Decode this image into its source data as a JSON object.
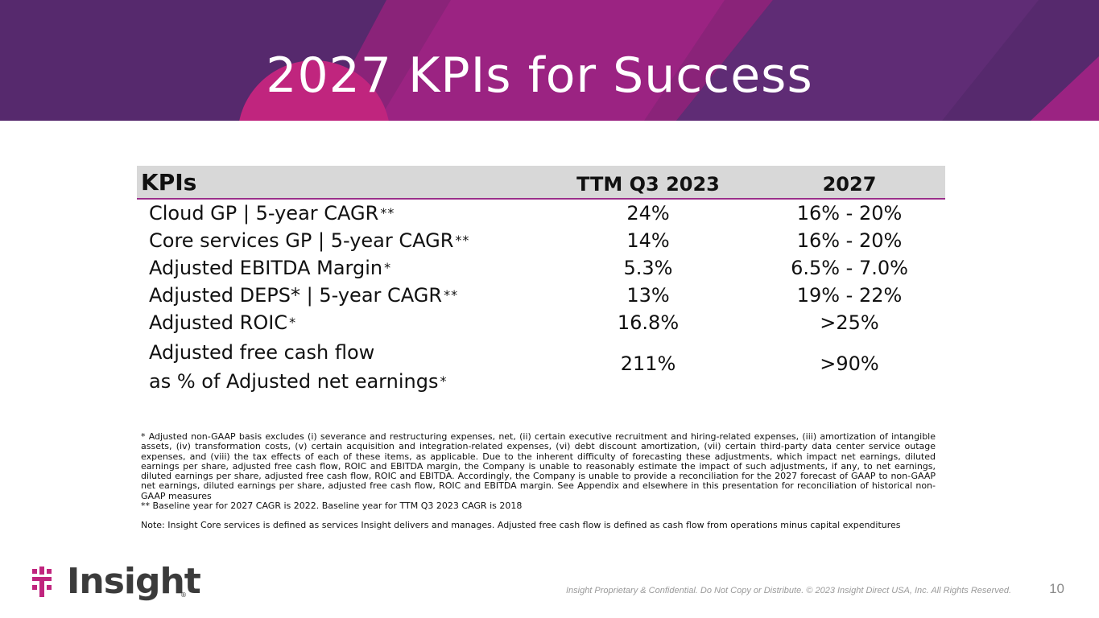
{
  "slide": {
    "title": "2027 KPIs for Success",
    "page_number": "10",
    "confidential": "Insight Proprietary & Confidential. Do Not Copy or Distribute. © 2023 Insight Direct USA, Inc. All Rights Reserved."
  },
  "logo": {
    "word": "Insight",
    "registered": "®"
  },
  "colors": {
    "banner_dark": "#56296d",
    "banner_magenta": "#9b2382",
    "banner_pink": "#c0257e",
    "accent": "#9a2f8a"
  },
  "table": {
    "headers": {
      "kpi": "KPIs",
      "ttm": "TTM Q3 2023",
      "year": "2027"
    },
    "rows": [
      {
        "name": "Cloud GP | 5-year CAGR",
        "mark": "**",
        "ttm": "24%",
        "target": "16% - 20%"
      },
      {
        "name": "Core services GP | 5-year CAGR",
        "mark": "**",
        "ttm": "14%",
        "target": "16% - 20%"
      },
      {
        "name": "Adjusted EBITDA Margin",
        "mark": "*",
        "ttm": "5.3%",
        "target": "6.5% - 7.0%"
      },
      {
        "name": "Adjusted DEPS* | 5-year CAGR",
        "mark": "**",
        "ttm": "13%",
        "target": "19% - 22%"
      },
      {
        "name": "Adjusted ROIC",
        "mark": "*",
        "ttm": "16.8%",
        "target": ">25%"
      }
    ],
    "last_row": {
      "line1": "Adjusted free cash flow",
      "line2": "as % of Adjusted net earnings",
      "mark": "*",
      "ttm": "211%",
      "target": ">90%"
    }
  },
  "footnotes": {
    "note1": "* Adjusted non-GAAP basis excludes (i) severance and restructuring expenses, net, (ii) certain executive recruitment and hiring-related expenses, (iii) amortization of intangible assets, (iv) transformation costs, (v) certain acquisition and integration-related expenses, (vi) debt discount amortization, (vii) certain third-party data center service outage expenses, and (viii) the tax effects of each of these items, as applicable. Due to the inherent difficulty of forecasting these adjustments, which impact net earnings, diluted earnings per share, adjusted free cash flow, ROIC and EBITDA margin, the Company is unable to reasonably estimate the impact of such adjustments, if any, to net earnings, diluted earnings per share, adjusted free cash flow, ROIC and EBITDA. Accordingly, the Company is unable to provide a reconciliation for the 2027 forecast of GAAP to non-GAAP net earnings, diluted earnings per share, adjusted free cash flow, ROIC and EBITDA margin. See Appendix and elsewhere in this presentation for reconciliation of historical non-GAAP measures",
    "note2": "** Baseline year for 2027 CAGR is 2022. Baseline year for TTM Q3 2023 CAGR is 2018",
    "note3": "Note: Insight Core services is defined as services Insight delivers and manages. Adjusted free cash flow is defined as cash flow from operations minus capital expenditures"
  }
}
